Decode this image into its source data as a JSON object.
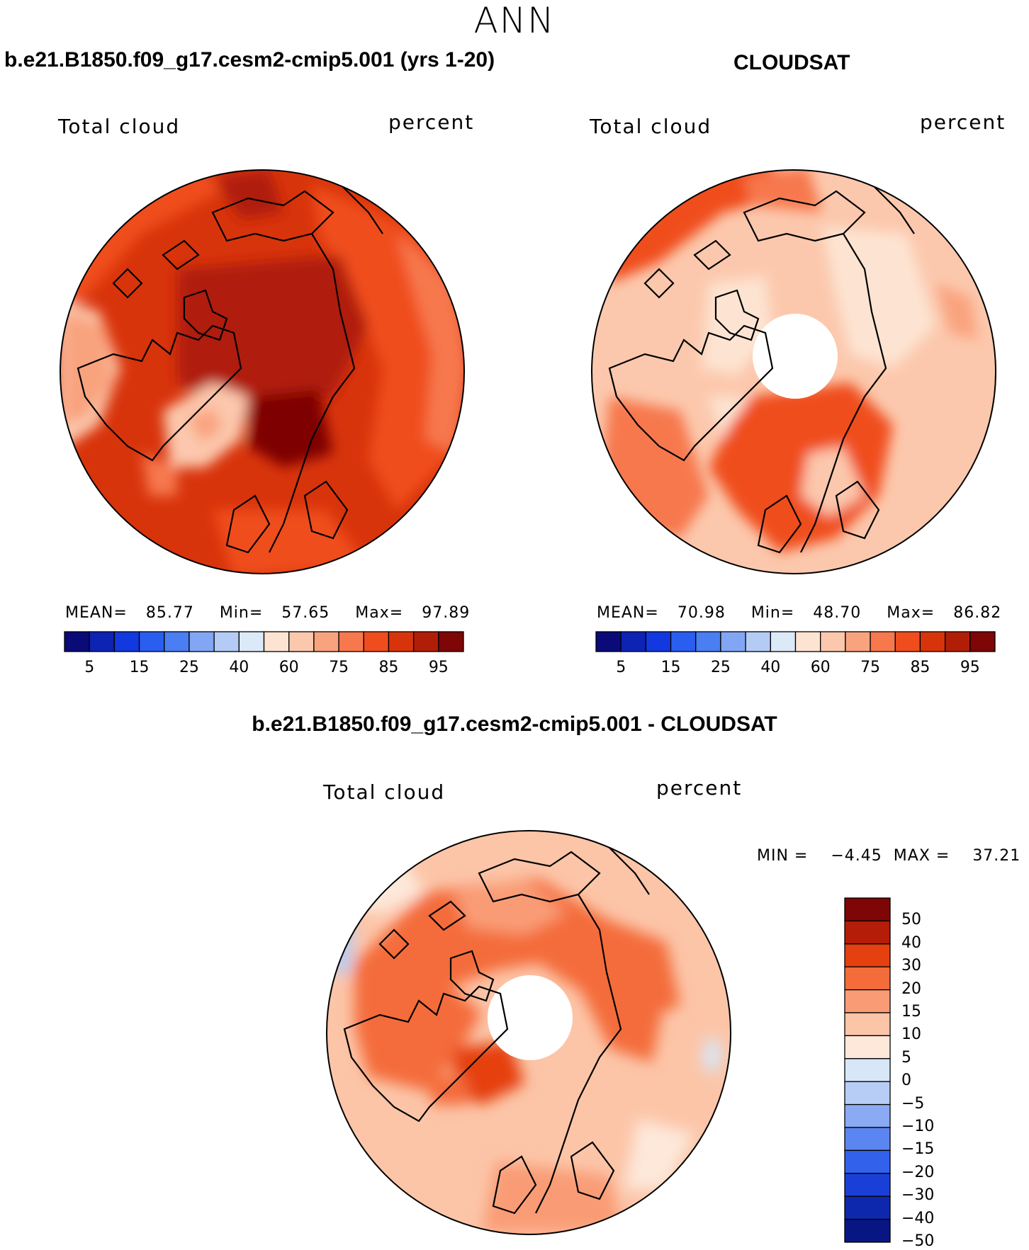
{
  "figure": {
    "season": "ANN",
    "left_title": "b.e21.B1850.f09_g17.cesm2-cmip5.001 (yrs 1-20)",
    "right_title": "CLOUDSAT",
    "diff_title": "b.e21.B1850.f09_g17.cesm2-cmip5.001 - CLOUDSAT"
  },
  "panels": {
    "model": {
      "variable": "Total cloud",
      "units": "percent",
      "mean_label": "MEAN=",
      "mean": "85.77",
      "min_label": "Min=",
      "min": "57.65",
      "max_label": "Max=",
      "max": "97.89"
    },
    "obs": {
      "variable": "Total cloud",
      "units": "percent",
      "mean_label": "MEAN=",
      "mean": "70.98",
      "min_label": "Min=",
      "min": "48.70",
      "max_label": "Max=",
      "max": "86.82",
      "missing_data_region": "polar cap (no data)"
    },
    "diff": {
      "variable": "Total cloud",
      "units": "percent",
      "min_label": "MIN =",
      "min": "−4.45",
      "max_label": "MAX =",
      "max": "37.21"
    }
  },
  "colorbars": {
    "abs": {
      "colors": [
        "#0a0a78",
        "#0c23b4",
        "#1238e0",
        "#2a5ef0",
        "#4a7ef2",
        "#82a6f4",
        "#b4cbf6",
        "#dce9f8",
        "#fde4d2",
        "#fcc8ad",
        "#f9a37e",
        "#f7784d",
        "#f04d1e",
        "#d8340c",
        "#b01e08",
        "#7e0606"
      ],
      "tick_labels": [
        "5",
        "15",
        "25",
        "40",
        "60",
        "75",
        "85",
        "95"
      ]
    },
    "diff": {
      "colors": [
        "#7e0606",
        "#b41d08",
        "#e5400f",
        "#f46c3a",
        "#f99c76",
        "#fcc5a8",
        "#fde8da",
        "#d7e7f8",
        "#b7cdf6",
        "#8aaaf4",
        "#5b85f1",
        "#3261ec",
        "#1a3fd7",
        "#0e28ad",
        "#071683"
      ],
      "tick_labels": [
        "50",
        "40",
        "30",
        "20",
        "15",
        "10",
        "5",
        "0",
        "−5",
        "−10",
        "−15",
        "−20",
        "−30",
        "−40",
        "−50"
      ]
    }
  }
}
